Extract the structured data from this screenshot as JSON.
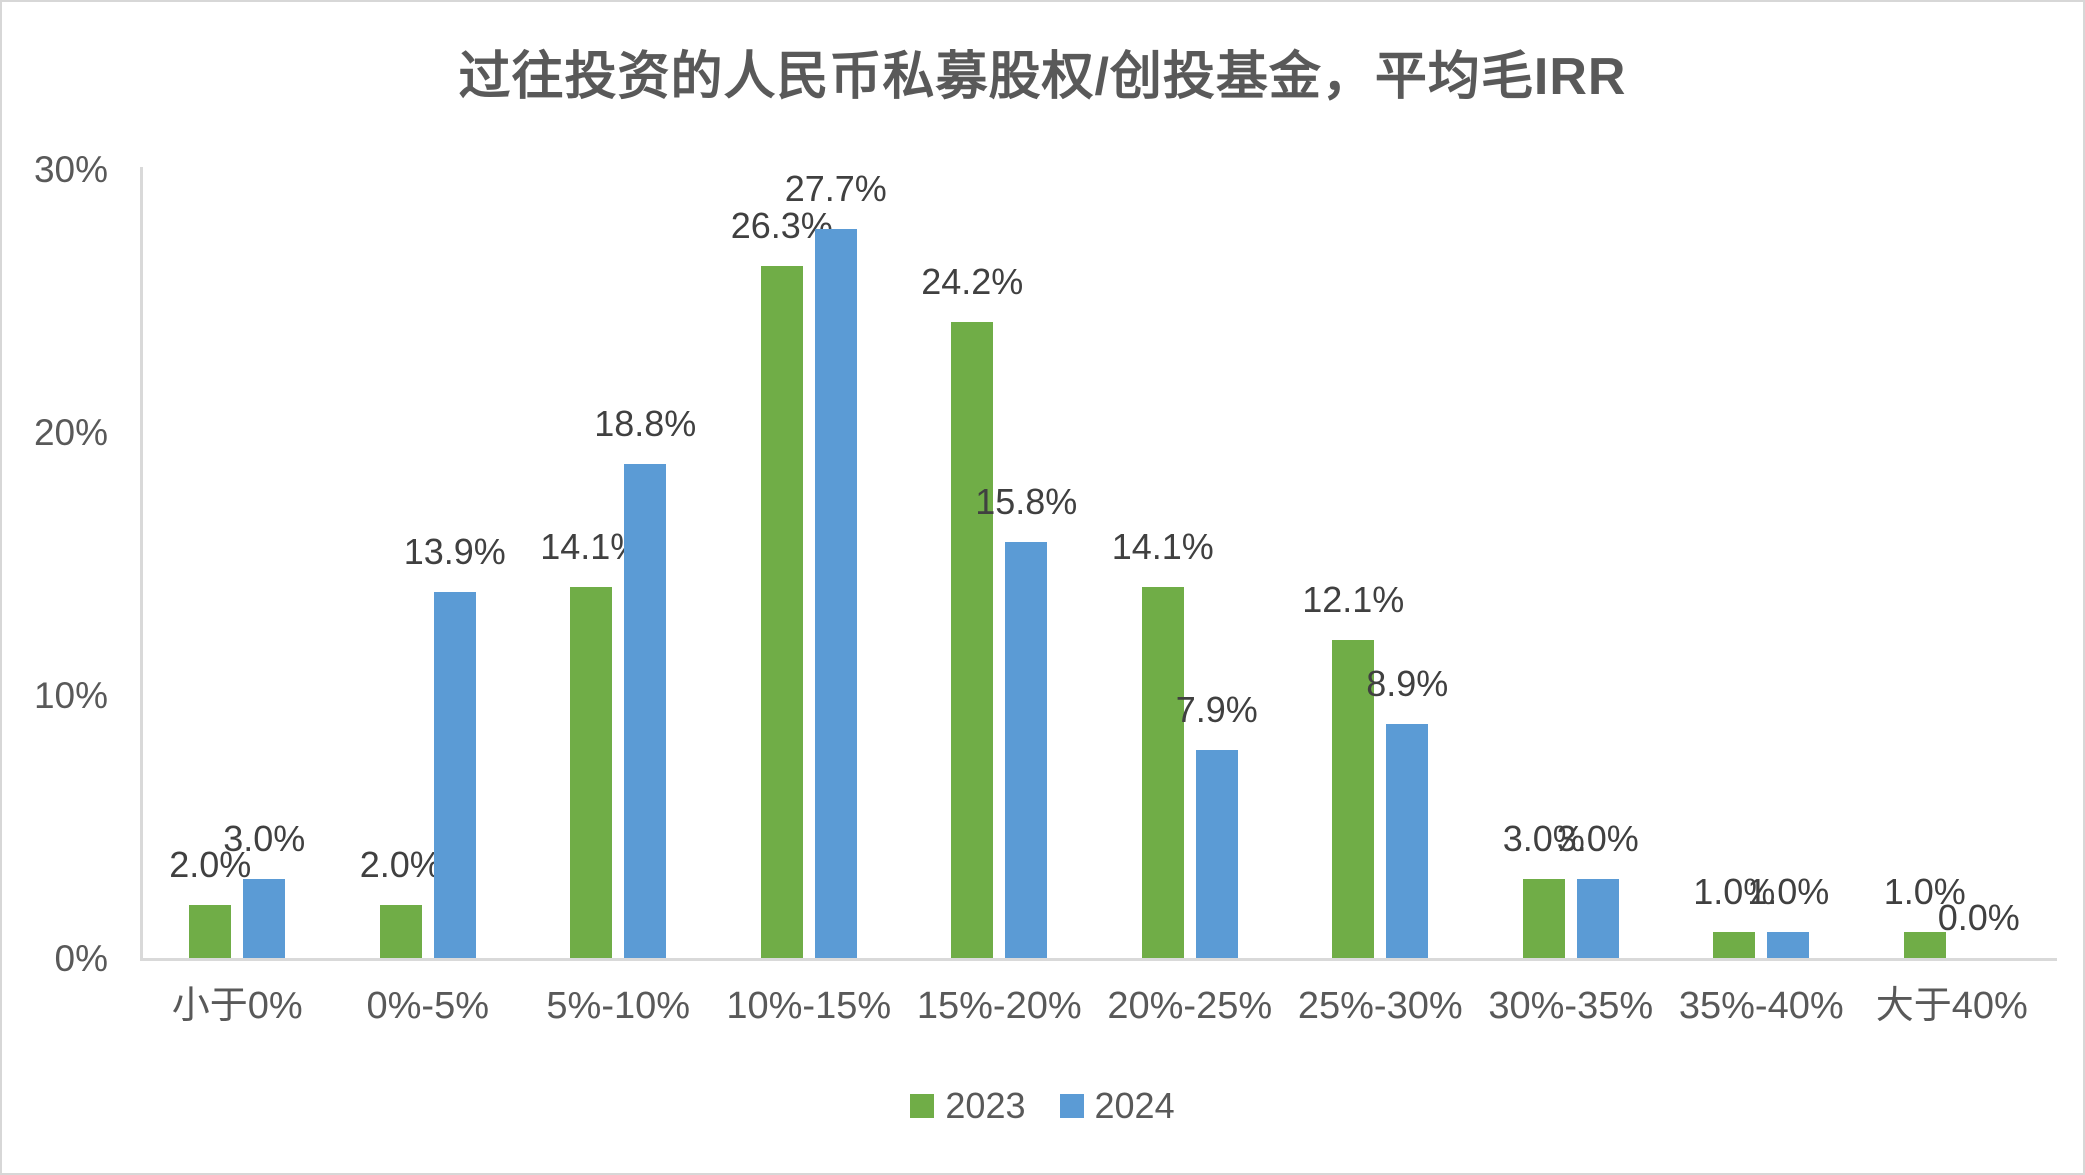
{
  "title": "过往投资的人民币私募股权/创投基金，平均毛IRR",
  "colors": {
    "series_2023": "#70AD47",
    "series_2024": "#5B9BD5",
    "axis_line": "#D9D9D9",
    "data_label_text": "#404040",
    "axis_text": "#595959",
    "title_text": "#595959",
    "canvas_border": "#D7D7D7"
  },
  "y_axis": {
    "ticks": [
      "0%",
      "10%",
      "20%",
      "30%"
    ],
    "tick_values": [
      0,
      10,
      20,
      30
    ]
  },
  "legend": {
    "items": [
      {
        "label": "2023",
        "color": "#70AD47"
      },
      {
        "label": "2024",
        "color": "#5B9BD5"
      }
    ]
  },
  "chart_data": {
    "type": "bar",
    "title": "过往投资的人民币私募股权/创投基金，平均毛IRR",
    "categories": [
      "小于0%",
      "0%-5%",
      "5%-10%",
      "10%-15%",
      "15%-20%",
      "20%-25%",
      "25%-30%",
      "30%-35%",
      "35%-40%",
      "大于40%"
    ],
    "series": [
      {
        "name": "2023",
        "color": "#70AD47",
        "values": [
          2.0,
          2.0,
          14.1,
          26.3,
          24.2,
          14.1,
          12.1,
          3.0,
          1.0,
          1.0
        ],
        "labels": [
          "2.0%",
          "2.0%",
          "14.1%",
          "26.3%",
          "24.2%",
          "14.1%",
          "12.1%",
          "3.0%",
          "1.0%",
          "1.0%"
        ]
      },
      {
        "name": "2024",
        "color": "#5B9BD5",
        "values": [
          3.0,
          13.9,
          18.8,
          27.7,
          15.8,
          7.9,
          8.9,
          3.0,
          1.0,
          0.0
        ],
        "labels": [
          "3.0%",
          "13.9%",
          "18.8%",
          "27.7%",
          "15.8%",
          "7.9%",
          "8.9%",
          "3.0%",
          "1.0%",
          "0.0%"
        ]
      }
    ],
    "xlabel": "",
    "ylabel": "",
    "ylim": [
      0,
      30
    ],
    "grid": false,
    "data_labels": true,
    "legend_position": "bottom"
  }
}
